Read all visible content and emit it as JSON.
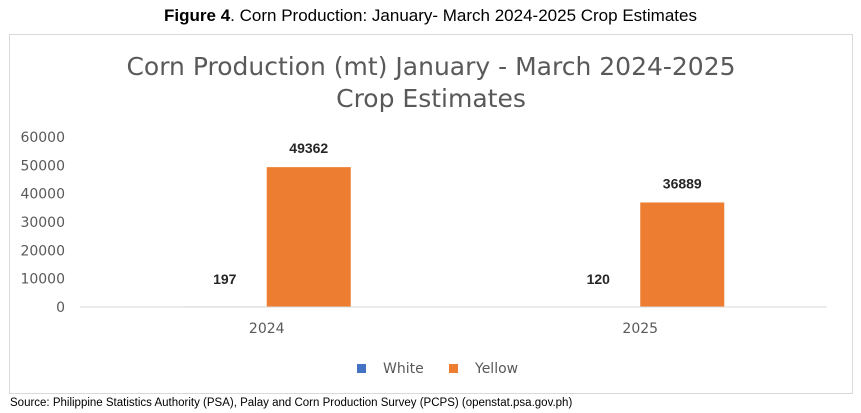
{
  "figure": {
    "label": "Figure 4",
    "caption": ". Corn Production: January- March 2024-2025 Crop Estimates"
  },
  "source": "Source:  Philippine Statistics Authority (PSA), Palay and Corn Production Survey (PCPS) (openstat.psa.gov.ph)",
  "chart_data": {
    "type": "bar",
    "title_lines": [
      "Corn Production (mt) January - March 2024-2025",
      "Crop Estimates"
    ],
    "categories": [
      "2024",
      "2025"
    ],
    "series": [
      {
        "name": "White",
        "values": [
          197,
          120
        ],
        "color": "#4472c4"
      },
      {
        "name": "Yellow",
        "values": [
          49362,
          36889
        ],
        "color": "#ed7d31"
      }
    ],
    "ylim": [
      0,
      60000
    ],
    "yticks": [
      0,
      10000,
      20000,
      30000,
      40000,
      50000,
      60000
    ],
    "grid": false,
    "legend": "bottom",
    "data_labels": true
  }
}
